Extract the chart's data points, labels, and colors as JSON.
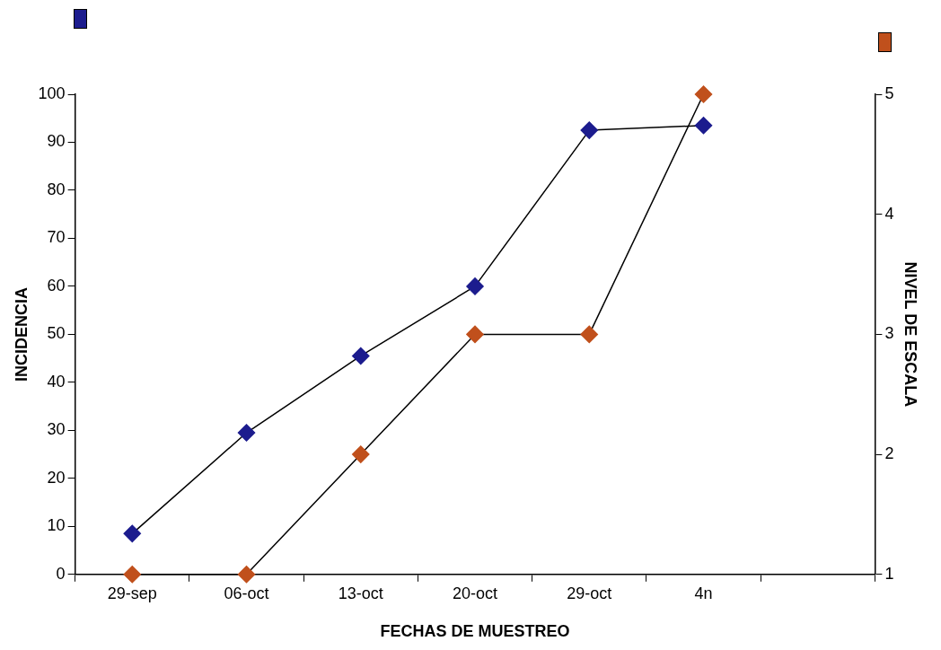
{
  "chart_data": {
    "type": "line",
    "xlabel": "FECHAS DE MUESTREO",
    "ylabel": "INCIDENCIA",
    "y2label": "NIVEL DE ESCALA",
    "categories": [
      "29-sep",
      "06-oct",
      "13-oct",
      "20-oct",
      "29-oct",
      "4n",
      null
    ],
    "series": [
      {
        "color": "#1c1c8e",
        "values": [
          8.5,
          29.5,
          45.5,
          60,
          92.5,
          93.5,
          null
        ]
      },
      {
        "color": "#c0501c",
        "axis": "y2",
        "values": [
          1,
          1,
          2,
          3,
          3,
          5,
          null
        ]
      }
    ],
    "ylim": [
      0,
      100
    ],
    "yticks": [
      0,
      10,
      20,
      30,
      40,
      50,
      60,
      70,
      80,
      90,
      100
    ],
    "y2lim": [
      1,
      5
    ],
    "y2ticks": [
      1,
      2,
      3,
      4,
      5
    ],
    "marker": "diamond",
    "line_style": "solid",
    "grid": false
  }
}
